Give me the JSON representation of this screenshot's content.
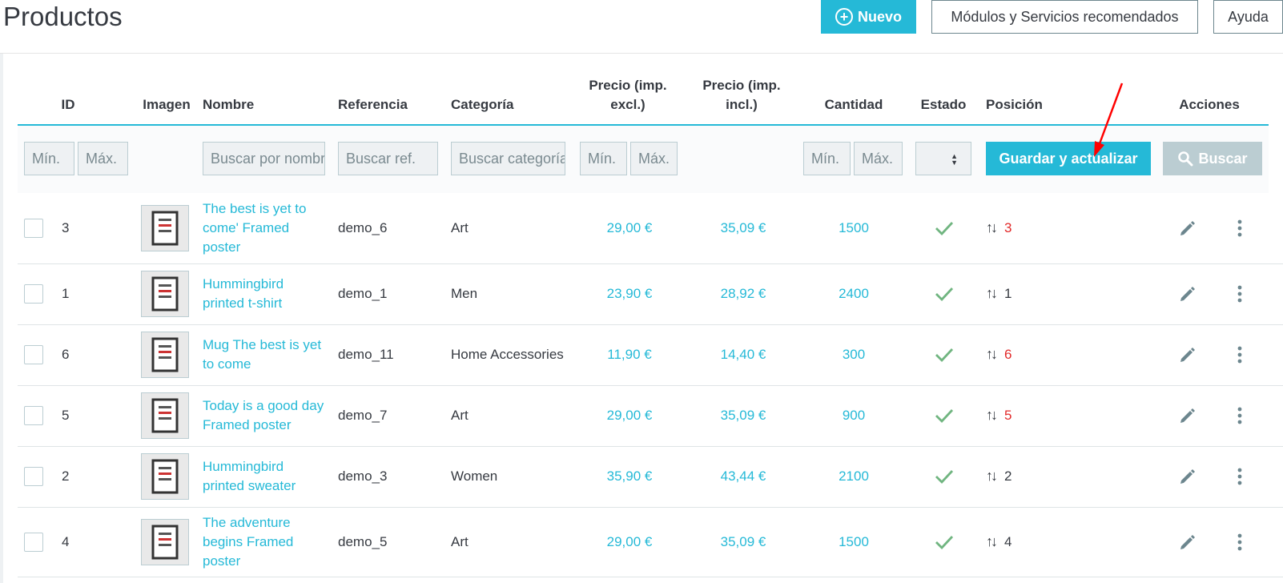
{
  "header": {
    "title": "Productos",
    "new_label": "Nuevo",
    "modules_label": "Módulos y Servicios recomendados",
    "help_label": "Ayuda"
  },
  "columns": {
    "id": "ID",
    "image": "Imagen",
    "name": "Nombre",
    "reference": "Referencia",
    "category": "Categoría",
    "price_excl_1": "Precio (imp.",
    "price_excl_2": "excl.)",
    "price_incl_1": "Precio (imp.",
    "price_incl_2": "incl.)",
    "quantity": "Cantidad",
    "status": "Estado",
    "position": "Posición",
    "actions": "Acciones"
  },
  "filters": {
    "id_min": "Mín.",
    "id_max": "Máx.",
    "name_placeholder": "Buscar por nombre",
    "ref_placeholder": "Buscar ref.",
    "category_placeholder": "Buscar categoría",
    "price_min": "Mín.",
    "price_max": "Máx.",
    "qty_min": "Mín.",
    "qty_max": "Máx.",
    "save_label": "Guardar y actualizar",
    "search_label": "Buscar"
  },
  "rows": [
    {
      "id": "3",
      "name_lines": [
        "The best is yet to",
        "come' Framed",
        "poster"
      ],
      "reference": "demo_6",
      "category": "Art",
      "price_excl": "29,00 €",
      "price_incl": "35,09 €",
      "quantity": "1500",
      "position": "3",
      "position_highlight": true
    },
    {
      "id": "1",
      "name_lines": [
        "Hummingbird",
        "printed t-shirt"
      ],
      "reference": "demo_1",
      "category": "Men",
      "price_excl": "23,90 €",
      "price_incl": "28,92 €",
      "quantity": "2400",
      "position": "1",
      "position_highlight": false
    },
    {
      "id": "6",
      "name_lines": [
        "Mug The best is yet",
        "to come"
      ],
      "reference": "demo_11",
      "category": "Home Accessories",
      "price_excl": "11,90 €",
      "price_incl": "14,40 €",
      "quantity": "300",
      "position": "6",
      "position_highlight": true
    },
    {
      "id": "5",
      "name_lines": [
        "Today is a good day",
        "Framed poster"
      ],
      "reference": "demo_7",
      "category": "Art",
      "price_excl": "29,00 €",
      "price_incl": "35,09 €",
      "quantity": "900",
      "position": "5",
      "position_highlight": true
    },
    {
      "id": "2",
      "name_lines": [
        "Hummingbird",
        "printed sweater"
      ],
      "reference": "demo_3",
      "category": "Women",
      "price_excl": "35,90 €",
      "price_incl": "43,44 €",
      "quantity": "2100",
      "position": "2",
      "position_highlight": false
    },
    {
      "id": "4",
      "name_lines": [
        "The adventure",
        "begins Framed",
        "poster"
      ],
      "reference": "demo_5",
      "category": "Art",
      "price_excl": "29,00 €",
      "price_incl": "35,09 €",
      "quantity": "1500",
      "position": "4",
      "position_highlight": false
    }
  ],
  "colors": {
    "accent": "#25b9d7",
    "text": "#363a41",
    "success": "#70b580",
    "position_changed": "#e22a2a",
    "annotation_arrow": "#ff0000"
  },
  "icons": {
    "new": "plus-circle-icon",
    "search": "magnifier-icon",
    "status": "check-icon",
    "position": "sort-arrows-icon",
    "edit": "pencil-icon",
    "more": "vertical-dots-icon"
  }
}
